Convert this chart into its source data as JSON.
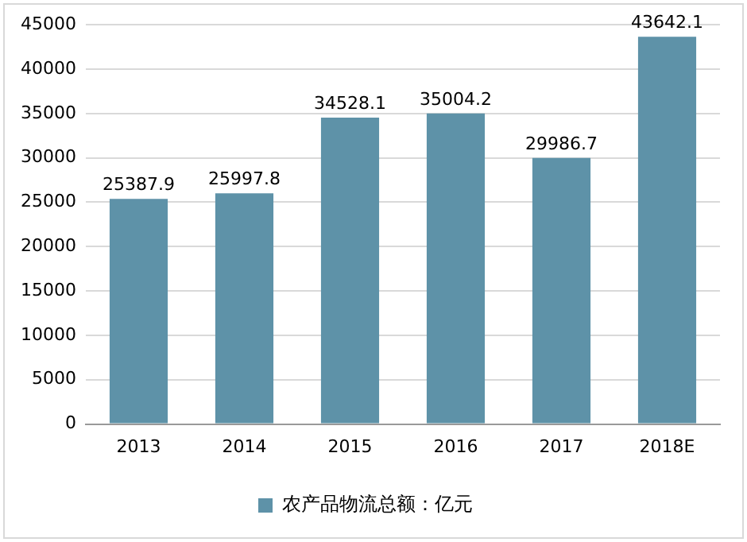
{
  "chart_data": {
    "type": "bar",
    "categories": [
      "2013",
      "2014",
      "2015",
      "2016",
      "2017",
      "2018E"
    ],
    "series": [
      {
        "name": "农产品物流总额：亿元",
        "color": "#5e92a8",
        "values": [
          25387.9,
          25997.8,
          34528.1,
          35004.2,
          29986.7,
          43642.1
        ]
      }
    ],
    "ylim": [
      0,
      45000
    ],
    "yticks": [
      0,
      5000,
      10000,
      15000,
      20000,
      25000,
      30000,
      35000,
      40000,
      45000
    ],
    "grid": "y",
    "legend": "bottom",
    "data_labels": true
  }
}
